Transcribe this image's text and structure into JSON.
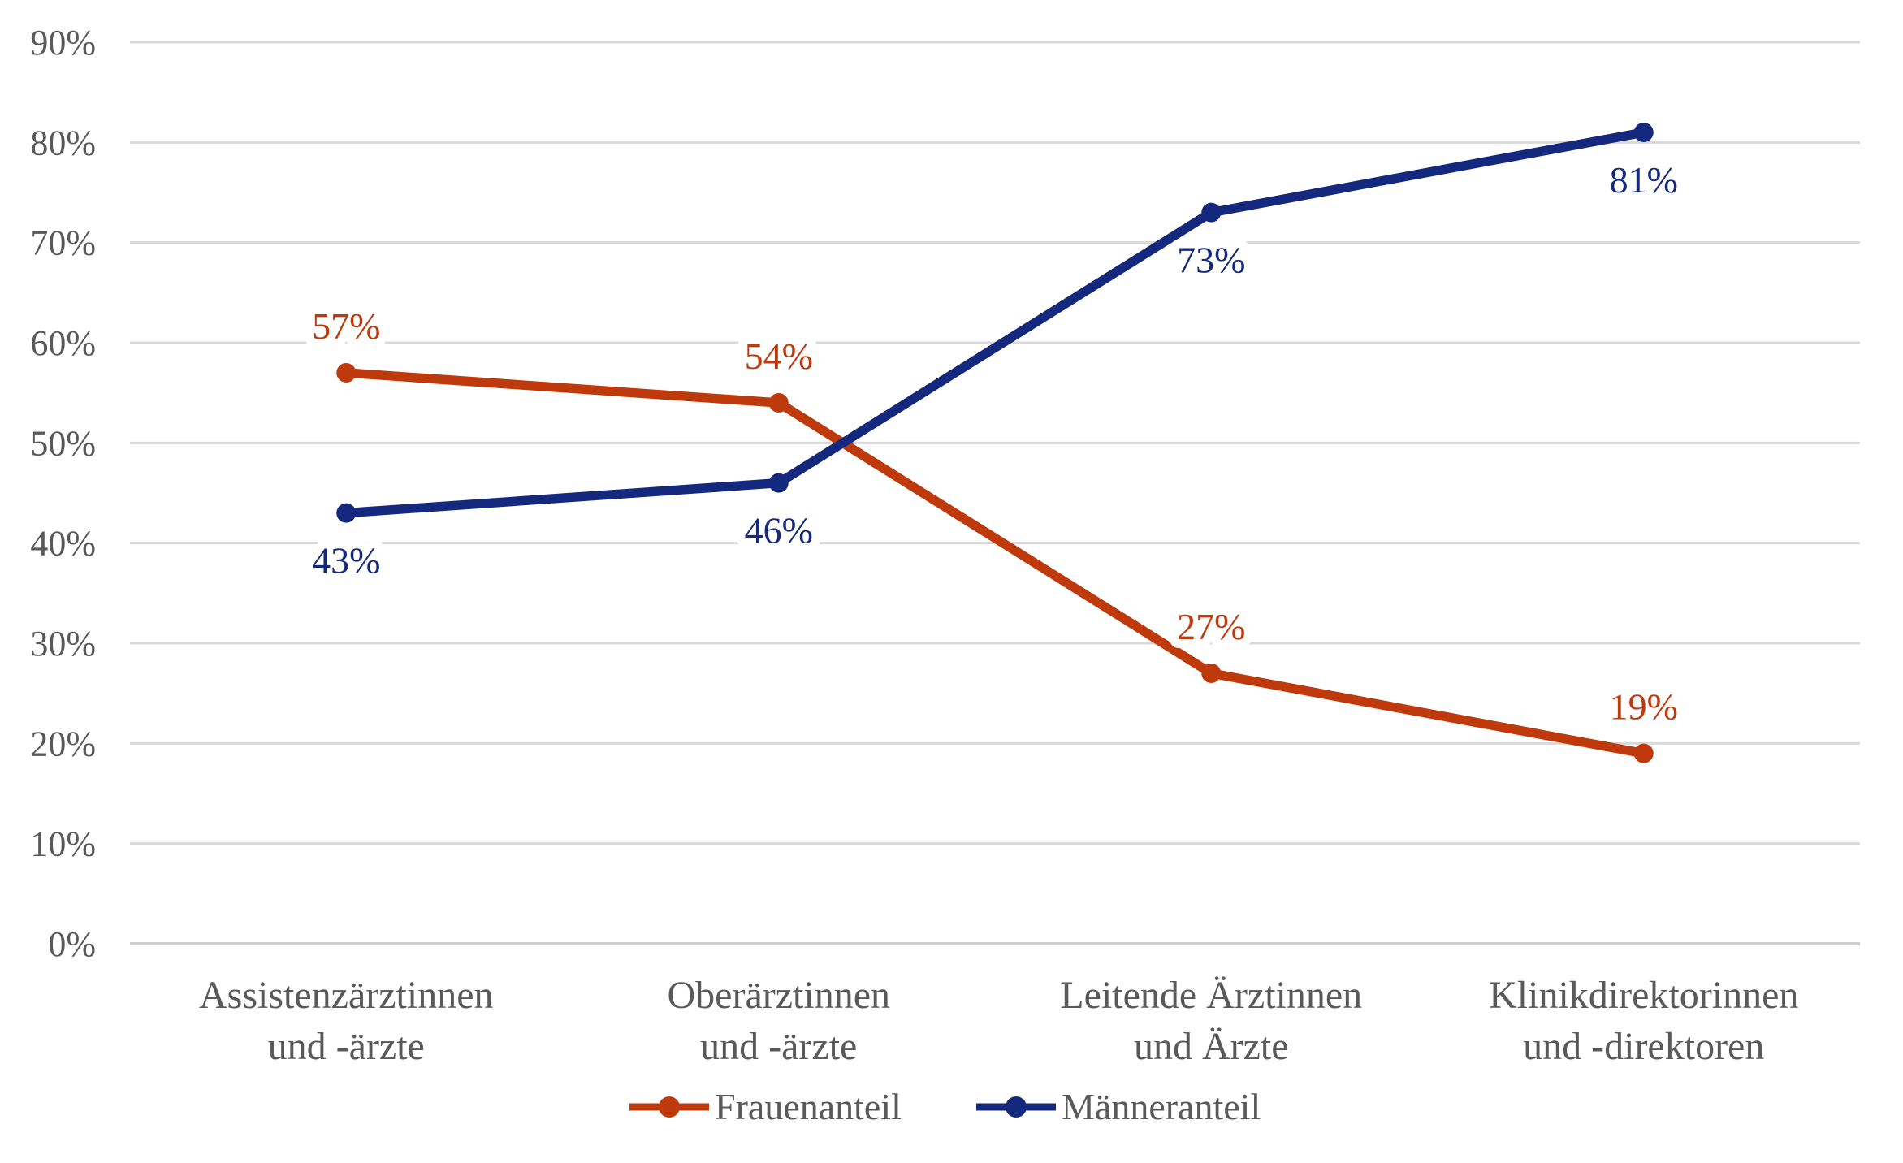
{
  "chart_data": {
    "type": "line",
    "title": "",
    "xlabel": "",
    "ylabel": "",
    "categories": [
      "Assistenzärztinnen und -ärzte",
      "Oberärztinnen und -ärzte",
      "Leitende Ärztinnen und Ärzte",
      "Klinikdirektorinnen und -direktoren"
    ],
    "category_label_lines": [
      [
        "Assistenzärztinnen",
        "und -ärzte"
      ],
      [
        "Oberärztinnen",
        "und -ärzte"
      ],
      [
        "Leitende Ärztinnen",
        "und Ärzte"
      ],
      [
        "Klinikdirektorinnen",
        "und -direktoren"
      ]
    ],
    "series": [
      {
        "name": "Frauenanteil",
        "color": "#BE3A0D",
        "values": [
          57,
          54,
          27,
          19
        ],
        "labels": [
          "57%",
          "54%",
          "27%",
          "19%"
        ],
        "label_placement": "above"
      },
      {
        "name": "Männeranteil",
        "color": "#14297D",
        "values": [
          43,
          46,
          73,
          81
        ],
        "labels": [
          "43%",
          "46%",
          "73%",
          "81%"
        ],
        "label_placement": "below"
      }
    ],
    "ylim": [
      0,
      90
    ],
    "ytick_step": 10,
    "ytick_labels": [
      "0%",
      "10%",
      "20%",
      "30%",
      "40%",
      "50%",
      "60%",
      "70%",
      "80%",
      "90%"
    ],
    "grid": "horizontal",
    "legend_position": "bottom-center",
    "colors": {
      "grid": "#D9D9D9",
      "axis_line": "#CFCFCF",
      "tick_text": "#595959",
      "category_text": "#595959",
      "legend_text": "#595959",
      "background": "#FFFFFF"
    }
  }
}
